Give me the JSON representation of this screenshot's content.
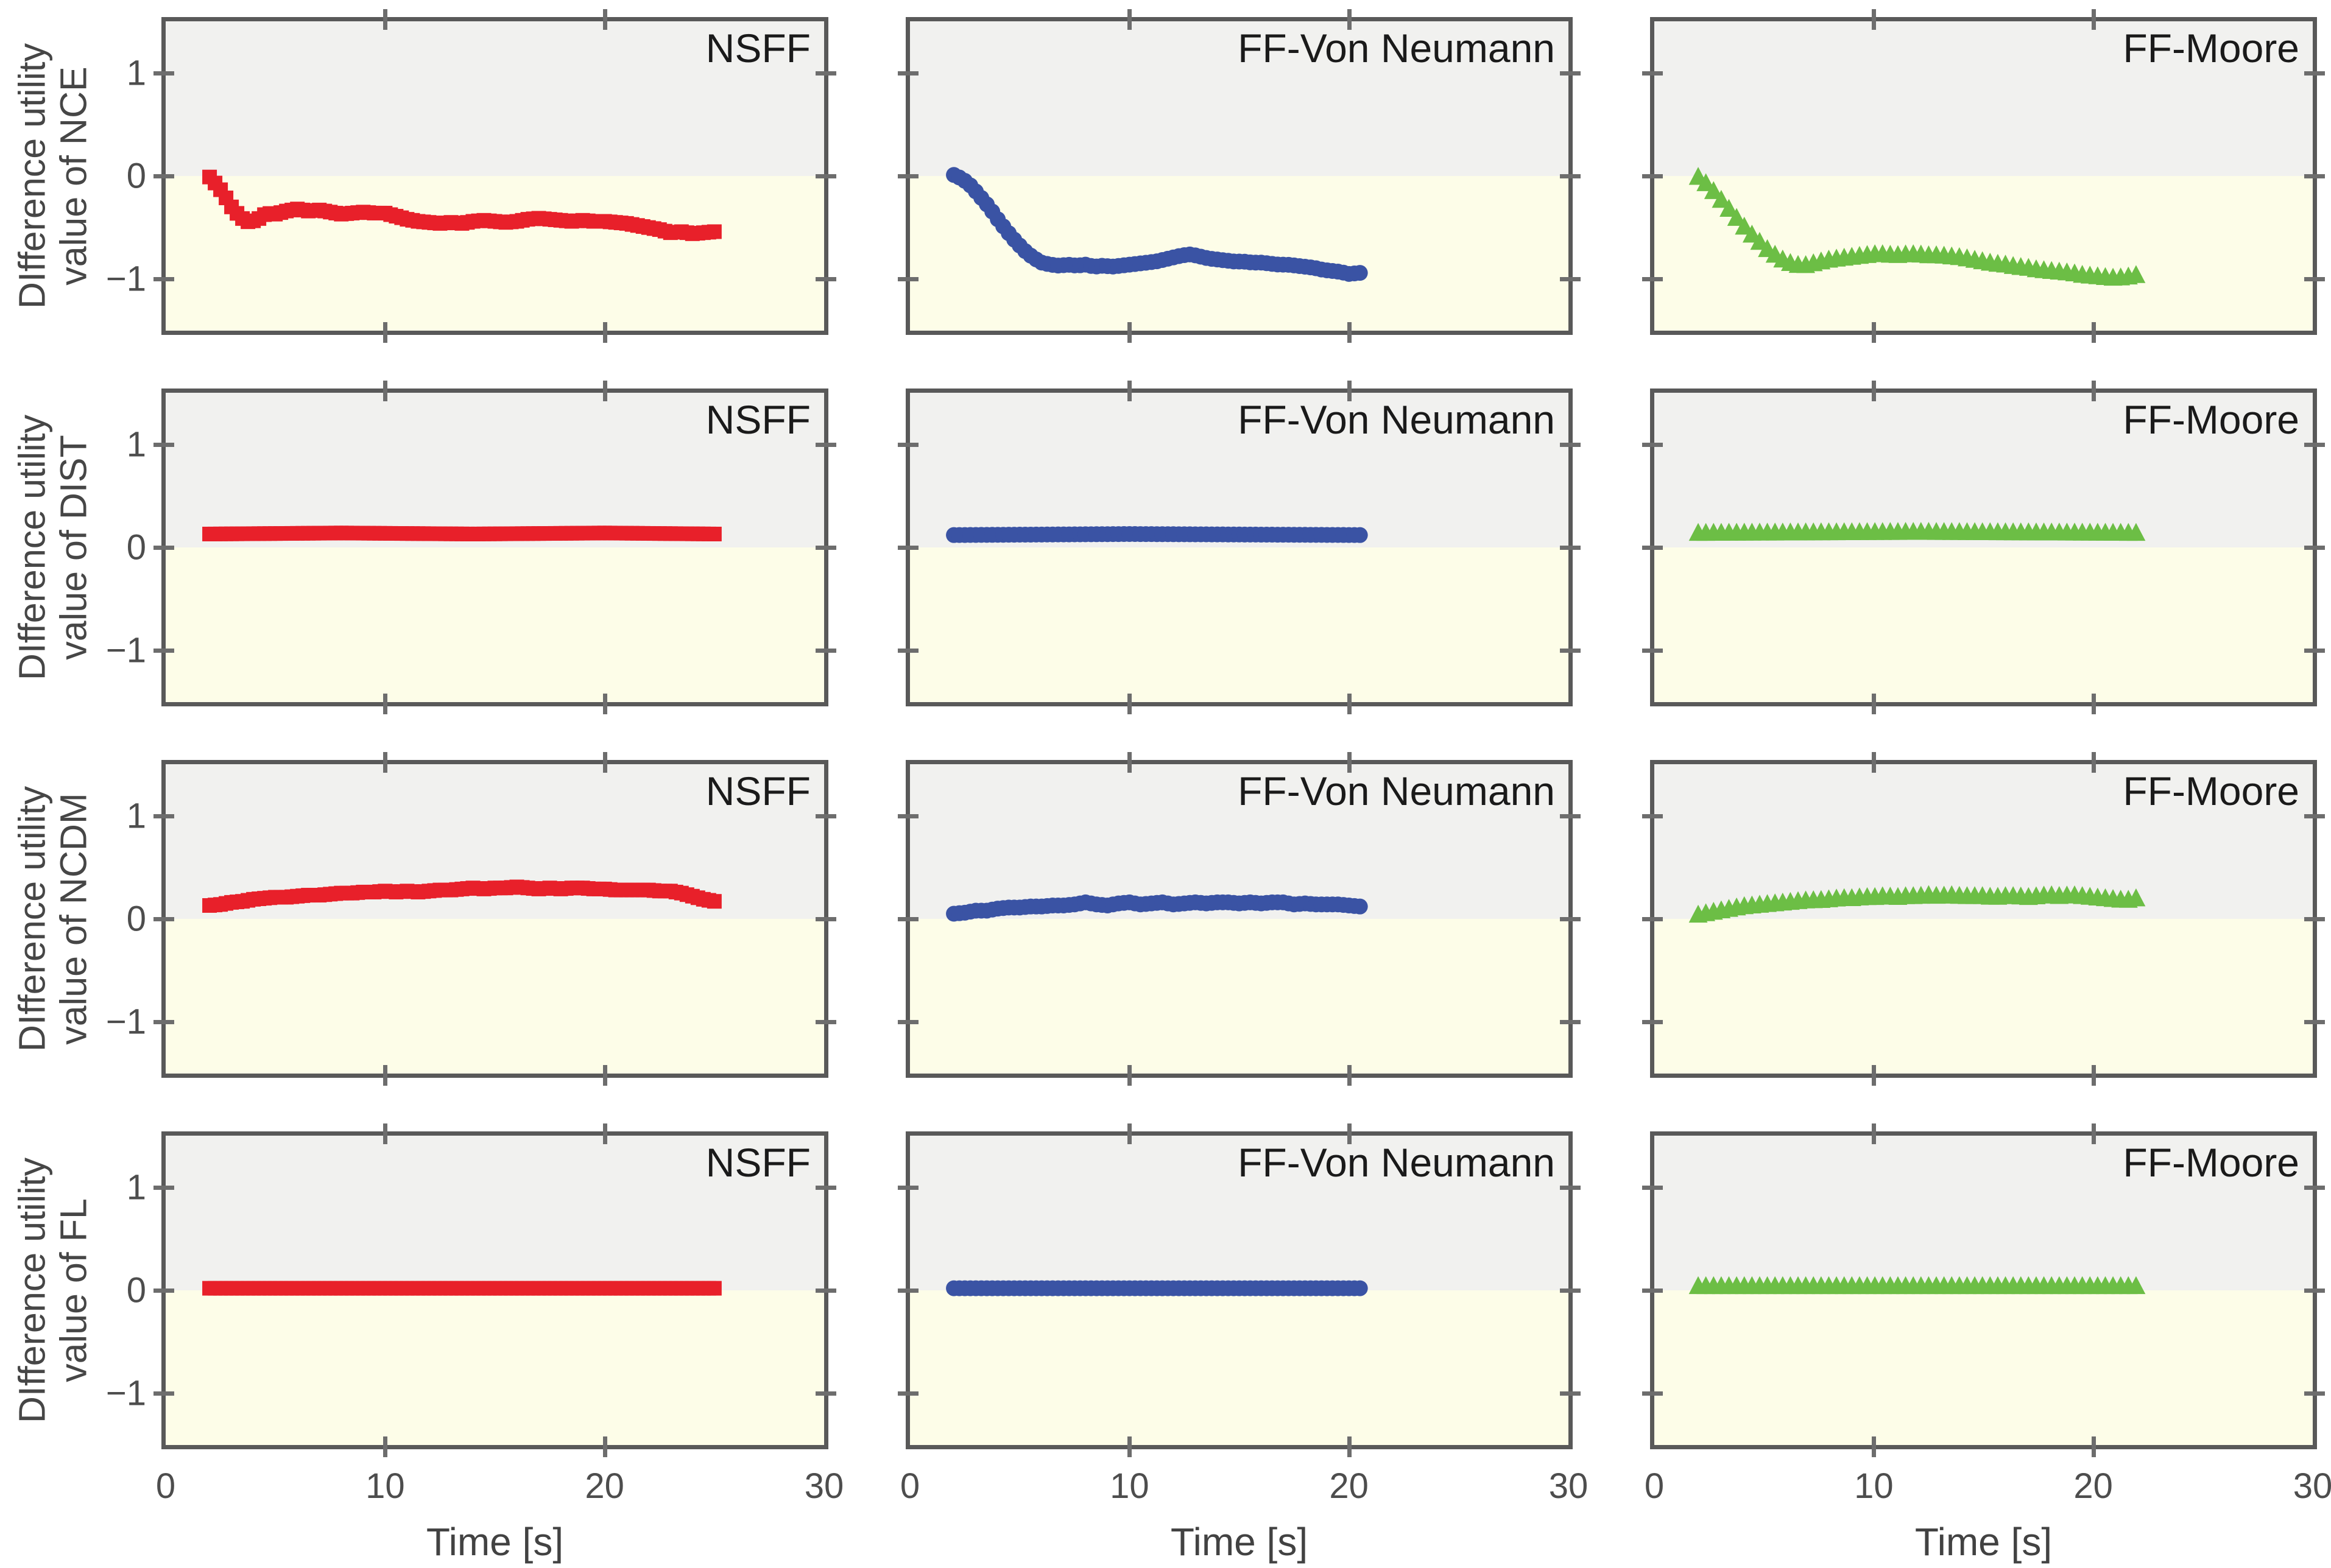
{
  "figure": {
    "description_labels": {
      "panel_titles": [
        "NSFF",
        "FF-Von Neumann",
        "FF-Moore"
      ],
      "x_axis_label": "Time [s]"
    }
  },
  "style": {
    "positive_region_bg": "#f1f1ef",
    "negative_region_bg": "#fdfde8",
    "axis_border_color": "#595959",
    "tick_color": "#6d6d6d",
    "nsff_color": "#e8202a",
    "von_neumann_color": "#3a53a4",
    "moore_color": "#6cbe45"
  },
  "chart_data": {
    "type": "scatter",
    "xlabel": "Time [s]",
    "xlim": [
      0,
      30
    ],
    "ylim": [
      -1.5,
      1.5
    ],
    "x_ticks": [
      "0",
      "10",
      "20",
      "30"
    ],
    "x_tick_values": [
      0,
      10,
      20,
      30
    ],
    "y_ticks": [
      "1",
      "0",
      "−1"
    ],
    "y_tick_values": [
      1,
      0,
      -1
    ],
    "grid": "off",
    "legend": "none",
    "rows": [
      {
        "metric": "NCE",
        "ylabel_line1": "DIfference utility",
        "ylabel_line2": "value of NCE"
      },
      {
        "metric": "DIST",
        "ylabel_line1": "DIfference utility",
        "ylabel_line2": "value of DIST"
      },
      {
        "metric": "NCDM",
        "ylabel_line1": "DIfference utility",
        "ylabel_line2": "value of NCDM"
      },
      {
        "metric": "FL",
        "ylabel_line1": "DIfference utility",
        "ylabel_line2": "value of FL"
      }
    ],
    "columns": [
      {
        "method": "NSFF",
        "color": "#e8202a",
        "marker": "square",
        "marker_size": 24,
        "marker_step": 0.25
      },
      {
        "method": "FF-Von Neumann",
        "color": "#3a53a4",
        "marker": "circle",
        "marker_size": 26,
        "marker_step": 0.25
      },
      {
        "method": "FF-Moore",
        "color": "#6cbe45",
        "marker": "triangle",
        "marker_size": 28,
        "marker_step": 0.35
      }
    ],
    "series": {
      "NCE": {
        "NSFF": [
          [
            2,
            -0.01
          ],
          [
            2.3,
            -0.08
          ],
          [
            2.6,
            -0.16
          ],
          [
            3,
            -0.3
          ],
          [
            3.4,
            -0.4
          ],
          [
            3.8,
            -0.45
          ],
          [
            4.2,
            -0.42
          ],
          [
            4.6,
            -0.36
          ],
          [
            5,
            -0.37
          ],
          [
            5.5,
            -0.34
          ],
          [
            6,
            -0.32
          ],
          [
            6.5,
            -0.34
          ],
          [
            7,
            -0.33
          ],
          [
            7.5,
            -0.35
          ],
          [
            8,
            -0.37
          ],
          [
            8.5,
            -0.36
          ],
          [
            9,
            -0.35
          ],
          [
            9.5,
            -0.36
          ],
          [
            10,
            -0.36
          ],
          [
            10.5,
            -0.39
          ],
          [
            11,
            -0.42
          ],
          [
            11.5,
            -0.44
          ],
          [
            12,
            -0.45
          ],
          [
            12.5,
            -0.46
          ],
          [
            13,
            -0.45
          ],
          [
            13.5,
            -0.46
          ],
          [
            14,
            -0.44
          ],
          [
            14.5,
            -0.43
          ],
          [
            15,
            -0.44
          ],
          [
            15.5,
            -0.45
          ],
          [
            16,
            -0.44
          ],
          [
            16.5,
            -0.42
          ],
          [
            17,
            -0.41
          ],
          [
            17.5,
            -0.42
          ],
          [
            18,
            -0.43
          ],
          [
            18.5,
            -0.44
          ],
          [
            19,
            -0.43
          ],
          [
            19.5,
            -0.44
          ],
          [
            20,
            -0.44
          ],
          [
            20.5,
            -0.45
          ],
          [
            21,
            -0.46
          ],
          [
            21.5,
            -0.48
          ],
          [
            22,
            -0.5
          ],
          [
            22.5,
            -0.52
          ],
          [
            23,
            -0.55
          ],
          [
            23.5,
            -0.54
          ],
          [
            24,
            -0.56
          ],
          [
            24.5,
            -0.55
          ],
          [
            25,
            -0.54
          ]
        ],
        "FF-Von Neumann": [
          [
            2,
            0.01
          ],
          [
            2.4,
            -0.03
          ],
          [
            2.8,
            -0.1
          ],
          [
            3.2,
            -0.2
          ],
          [
            3.6,
            -0.3
          ],
          [
            4,
            -0.42
          ],
          [
            4.4,
            -0.53
          ],
          [
            4.8,
            -0.63
          ],
          [
            5.2,
            -0.72
          ],
          [
            5.6,
            -0.79
          ],
          [
            6,
            -0.84
          ],
          [
            6.4,
            -0.86
          ],
          [
            6.8,
            -0.87
          ],
          [
            7.2,
            -0.86
          ],
          [
            7.6,
            -0.87
          ],
          [
            8,
            -0.86
          ],
          [
            8.4,
            -0.88
          ],
          [
            8.8,
            -0.87
          ],
          [
            9.2,
            -0.88
          ],
          [
            9.6,
            -0.87
          ],
          [
            10,
            -0.86
          ],
          [
            10.4,
            -0.85
          ],
          [
            10.8,
            -0.84
          ],
          [
            11.2,
            -0.83
          ],
          [
            11.6,
            -0.81
          ],
          [
            12,
            -0.79
          ],
          [
            12.4,
            -0.77
          ],
          [
            12.8,
            -0.76
          ],
          [
            13.2,
            -0.78
          ],
          [
            13.6,
            -0.8
          ],
          [
            14,
            -0.81
          ],
          [
            14.4,
            -0.82
          ],
          [
            14.8,
            -0.83
          ],
          [
            15.2,
            -0.83
          ],
          [
            15.6,
            -0.84
          ],
          [
            16,
            -0.84
          ],
          [
            16.4,
            -0.85
          ],
          [
            16.8,
            -0.86
          ],
          [
            17.2,
            -0.86
          ],
          [
            17.6,
            -0.87
          ],
          [
            18,
            -0.88
          ],
          [
            18.4,
            -0.89
          ],
          [
            18.8,
            -0.91
          ],
          [
            19.2,
            -0.92
          ],
          [
            19.6,
            -0.93
          ],
          [
            20,
            -0.95
          ],
          [
            20.5,
            -0.94
          ]
        ],
        "FF-Moore": [
          [
            2,
            -0.02
          ],
          [
            2.4,
            -0.09
          ],
          [
            2.8,
            -0.18
          ],
          [
            3.2,
            -0.28
          ],
          [
            3.6,
            -0.38
          ],
          [
            4,
            -0.48
          ],
          [
            4.4,
            -0.57
          ],
          [
            4.8,
            -0.65
          ],
          [
            5.2,
            -0.73
          ],
          [
            5.6,
            -0.79
          ],
          [
            6,
            -0.84
          ],
          [
            6.4,
            -0.87
          ],
          [
            6.8,
            -0.88
          ],
          [
            7.2,
            -0.86
          ],
          [
            7.6,
            -0.84
          ],
          [
            8,
            -0.82
          ],
          [
            8.4,
            -0.81
          ],
          [
            8.8,
            -0.8
          ],
          [
            9.2,
            -0.79
          ],
          [
            9.6,
            -0.78
          ],
          [
            10,
            -0.77
          ],
          [
            10.5,
            -0.77
          ],
          [
            11,
            -0.78
          ],
          [
            11.5,
            -0.77
          ],
          [
            12,
            -0.77
          ],
          [
            12.5,
            -0.78
          ],
          [
            13,
            -0.78
          ],
          [
            13.5,
            -0.79
          ],
          [
            14,
            -0.8
          ],
          [
            14.5,
            -0.82
          ],
          [
            15,
            -0.84
          ],
          [
            15.5,
            -0.86
          ],
          [
            16,
            -0.87
          ],
          [
            16.5,
            -0.89
          ],
          [
            17,
            -0.9
          ],
          [
            17.5,
            -0.92
          ],
          [
            18,
            -0.93
          ],
          [
            18.5,
            -0.94
          ],
          [
            19,
            -0.95
          ],
          [
            19.5,
            -0.97
          ],
          [
            20,
            -0.98
          ],
          [
            20.5,
            -0.99
          ],
          [
            21,
            -1.0
          ],
          [
            21.5,
            -0.99
          ],
          [
            22,
            -0.97
          ]
        ]
      },
      "DIST": {
        "NSFF": [
          [
            2,
            0.13
          ],
          [
            8,
            0.14
          ],
          [
            14,
            0.13
          ],
          [
            20,
            0.14
          ],
          [
            25,
            0.13
          ]
        ],
        "FF-Von Neumann": [
          [
            2,
            0.12
          ],
          [
            10,
            0.13
          ],
          [
            20.5,
            0.12
          ]
        ],
        "FF-Moore": [
          [
            2,
            0.13
          ],
          [
            12,
            0.14
          ],
          [
            22,
            0.13
          ]
        ]
      },
      "NCDM": {
        "NSFF": [
          [
            2,
            0.13
          ],
          [
            2.5,
            0.14
          ],
          [
            3,
            0.16
          ],
          [
            3.5,
            0.17
          ],
          [
            4,
            0.19
          ],
          [
            4.5,
            0.2
          ],
          [
            5,
            0.21
          ],
          [
            5.5,
            0.21
          ],
          [
            6,
            0.22
          ],
          [
            6.5,
            0.23
          ],
          [
            7,
            0.23
          ],
          [
            7.5,
            0.24
          ],
          [
            8,
            0.25
          ],
          [
            8.5,
            0.25
          ],
          [
            9,
            0.26
          ],
          [
            9.5,
            0.26
          ],
          [
            10,
            0.27
          ],
          [
            10.5,
            0.26
          ],
          [
            11,
            0.27
          ],
          [
            11.5,
            0.26
          ],
          [
            12,
            0.27
          ],
          [
            12.5,
            0.28
          ],
          [
            13,
            0.28
          ],
          [
            13.5,
            0.29
          ],
          [
            14,
            0.3
          ],
          [
            14.5,
            0.29
          ],
          [
            15,
            0.3
          ],
          [
            15.5,
            0.3
          ],
          [
            16,
            0.31
          ],
          [
            16.5,
            0.3
          ],
          [
            17,
            0.29
          ],
          [
            17.5,
            0.3
          ],
          [
            18,
            0.29
          ],
          [
            18.5,
            0.3
          ],
          [
            19,
            0.3
          ],
          [
            19.5,
            0.29
          ],
          [
            20,
            0.29
          ],
          [
            20.5,
            0.28
          ],
          [
            21,
            0.28
          ],
          [
            21.5,
            0.28
          ],
          [
            22,
            0.28
          ],
          [
            22.5,
            0.27
          ],
          [
            23,
            0.27
          ],
          [
            23.5,
            0.25
          ],
          [
            24,
            0.22
          ],
          [
            24.5,
            0.19
          ],
          [
            25,
            0.17
          ]
        ],
        "FF-Von Neumann": [
          [
            2,
            0.05
          ],
          [
            2.5,
            0.06
          ],
          [
            3,
            0.08
          ],
          [
            3.5,
            0.08
          ],
          [
            4,
            0.1
          ],
          [
            4.5,
            0.11
          ],
          [
            5,
            0.11
          ],
          [
            5.5,
            0.12
          ],
          [
            6,
            0.12
          ],
          [
            6.5,
            0.13
          ],
          [
            7,
            0.13
          ],
          [
            7.5,
            0.14
          ],
          [
            8,
            0.16
          ],
          [
            8.5,
            0.14
          ],
          [
            9,
            0.13
          ],
          [
            9.5,
            0.15
          ],
          [
            10,
            0.16
          ],
          [
            10.5,
            0.14
          ],
          [
            11,
            0.15
          ],
          [
            11.5,
            0.16
          ],
          [
            12,
            0.14
          ],
          [
            12.5,
            0.15
          ],
          [
            13,
            0.16
          ],
          [
            13.5,
            0.15
          ],
          [
            14,
            0.16
          ],
          [
            14.5,
            0.16
          ],
          [
            15,
            0.15
          ],
          [
            15.5,
            0.16
          ],
          [
            16,
            0.15
          ],
          [
            16.5,
            0.16
          ],
          [
            17,
            0.16
          ],
          [
            17.5,
            0.14
          ],
          [
            18,
            0.15
          ],
          [
            18.5,
            0.14
          ],
          [
            19,
            0.14
          ],
          [
            19.5,
            0.14
          ],
          [
            20,
            0.13
          ],
          [
            20.5,
            0.12
          ]
        ],
        "FF-Moore": [
          [
            2,
            0.03
          ],
          [
            2.5,
            0.05
          ],
          [
            3,
            0.07
          ],
          [
            3.5,
            0.09
          ],
          [
            4,
            0.11
          ],
          [
            4.5,
            0.12
          ],
          [
            5,
            0.13
          ],
          [
            5.5,
            0.14
          ],
          [
            6,
            0.15
          ],
          [
            6.5,
            0.16
          ],
          [
            7,
            0.17
          ],
          [
            7.5,
            0.17
          ],
          [
            8,
            0.18
          ],
          [
            8.5,
            0.19
          ],
          [
            9,
            0.19
          ],
          [
            9.5,
            0.2
          ],
          [
            10,
            0.2
          ],
          [
            10.5,
            0.21
          ],
          [
            11,
            0.2
          ],
          [
            11.5,
            0.21
          ],
          [
            12,
            0.21
          ],
          [
            12.5,
            0.22
          ],
          [
            13,
            0.21
          ],
          [
            13.5,
            0.22
          ],
          [
            14,
            0.21
          ],
          [
            14.5,
            0.21
          ],
          [
            15,
            0.21
          ],
          [
            15.5,
            0.2
          ],
          [
            16,
            0.21
          ],
          [
            16.5,
            0.21
          ],
          [
            17,
            0.2
          ],
          [
            17.5,
            0.21
          ],
          [
            18,
            0.22
          ],
          [
            18.5,
            0.21
          ],
          [
            19,
            0.22
          ],
          [
            19.5,
            0.21
          ],
          [
            20,
            0.2
          ],
          [
            20.5,
            0.19
          ],
          [
            21,
            0.18
          ],
          [
            21.5,
            0.17
          ],
          [
            22,
            0.19
          ]
        ]
      },
      "FL": {
        "NSFF": [
          [
            2,
            0.02
          ],
          [
            12,
            0.02
          ],
          [
            25,
            0.02
          ]
        ],
        "FF-Von Neumann": [
          [
            2,
            0.02
          ],
          [
            11,
            0.02
          ],
          [
            20.5,
            0.02
          ]
        ],
        "FF-Moore": [
          [
            2,
            0.03
          ],
          [
            12,
            0.03
          ],
          [
            22,
            0.03
          ]
        ]
      }
    }
  }
}
